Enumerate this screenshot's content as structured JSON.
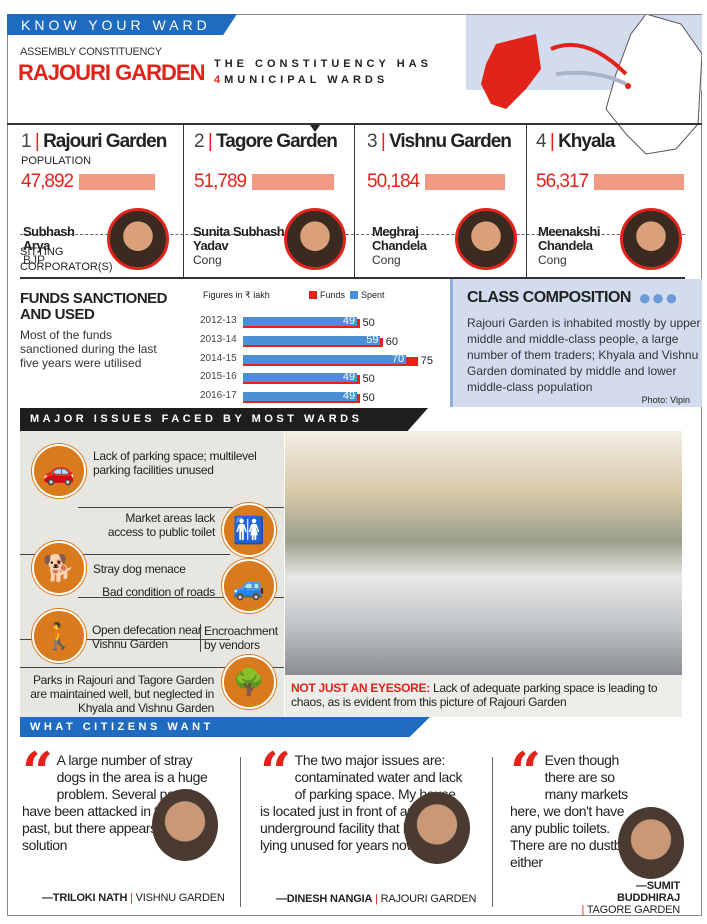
{
  "header": {
    "banner": "KNOW YOUR WARD",
    "label": "ASSEMBLY CONSTITUENCY",
    "constituency": "RAJOURI GARDEN",
    "wards_text_1": "THE CONSTITUENCY HAS",
    "wards_count": "4",
    "wards_text_2": "MUNICIPAL WARDS"
  },
  "wards": [
    {
      "num": "1",
      "name": "Rajouri Garden",
      "population": "47,892",
      "corporator": "Subhash Arya",
      "party": "BJP"
    },
    {
      "num": "2",
      "name": "Tagore Garden",
      "population": "51,789",
      "corporator": "Sunita Subhash Yadav",
      "party": "Cong"
    },
    {
      "num": "3",
      "name": "Vishnu Garden",
      "population": "50,184",
      "corporator": "Meghraj Chandela",
      "party": "Cong"
    },
    {
      "num": "4",
      "name": "Khyala",
      "population": "56,317",
      "corporator": "Meenakshi Chandela",
      "party": "Cong"
    }
  ],
  "population_label": "POPULATION",
  "sitting_label": "SITTING CORPORATOR(S)",
  "funds": {
    "title": "FUNDS SANCTIONED AND USED",
    "desc": "Most of the funds sanctioned during the last five years were utilised"
  },
  "chart_data": {
    "type": "bar",
    "title": "Figures in ₹ lakh",
    "categories": [
      "2012-13",
      "2013-14",
      "2014-15",
      "2015-16",
      "2016-17"
    ],
    "series": [
      {
        "name": "Funds",
        "color": "#e2231a",
        "values": [
          50,
          60,
          75,
          50,
          50
        ]
      },
      {
        "name": "Spent",
        "color": "#4a8fd4",
        "values": [
          49,
          59,
          70,
          49,
          49
        ]
      }
    ],
    "xlim": [
      0,
      80
    ]
  },
  "class_composition": {
    "title": "CLASS COMPOSITION",
    "text": "Rajouri Garden is inhabited mostly by upper middle and middle-class people, a large number of them traders; Khyala and Vishnu Garden dominated by middle and lower middle-class population",
    "photo_credit": "Photo: Vipin"
  },
  "issues": {
    "banner": "MAJOR ISSUES FACED BY MOST WARDS",
    "items": [
      "Lack of parking space; multilevel parking facilities unused",
      "Market areas lack access to public toilet",
      "Stray dog menace",
      "Bad condition of roads",
      "Open defecation near Vishnu Garden",
      "Encroachment by vendors",
      "Parks in Rajouri and Tagore Garden are maintained well, but neglected in Khyala and Vishnu Garden"
    ],
    "caption_lead": "NOT JUST AN EYESORE:",
    "caption": " Lack of adequate parking space is leading to chaos, as is evident from this picture of Rajouri Garden"
  },
  "citizens": {
    "banner": "WHAT CITIZENS WANT",
    "quotes": [
      {
        "text": "A large number of stray dogs in the area is a huge problem. Several people have been attacked in the recent past, but there appears to be no solution",
        "name": "—TRILOKI NATH",
        "place": "VISHNU GARDEN"
      },
      {
        "text": "The two major issues are: contaminated water and lack of parking space. My house is located just in front of an underground facility that has been lying unused for years now",
        "name": "—DINESH NANGIA",
        "place": "RAJOURI GARDEN"
      },
      {
        "text": "Even though there are so many markets here, we don't have any public toilets. There are no dustbins either",
        "name": "—SUMIT BUDDHIRAJ",
        "place": "TAGORE GARDEN"
      }
    ]
  }
}
